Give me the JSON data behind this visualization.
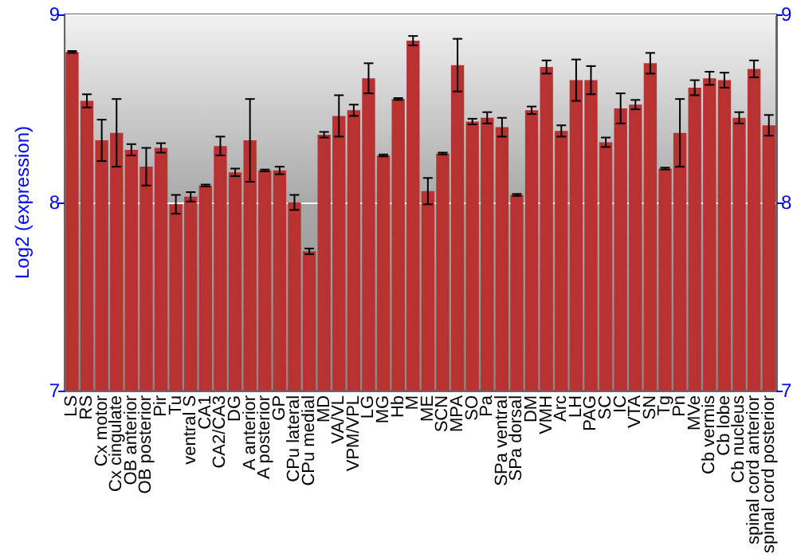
{
  "chart_data": {
    "type": "bar",
    "ylabel": "Log2 (expression)",
    "categories": [
      "LS",
      "RS",
      "Cx motor",
      "Cx cingulate",
      "OB anterior",
      "OB posterior",
      "Pir",
      "Tu",
      "ventral S",
      "CA1",
      "CA2/CA3",
      "DG",
      "A anterior",
      "A posterior",
      "GP",
      "CPu lateral",
      "CPu medial",
      "MD",
      "VA/VL",
      "VPM/VPL",
      "LG",
      "MG",
      "Hb",
      "M",
      "ME",
      "SCN",
      "MPA",
      "SO",
      "Pa",
      "SPa ventral",
      "SPa dorsal",
      "DM",
      "VMH",
      "Arc",
      "LH",
      "PAG",
      "SC",
      "IC",
      "VTA",
      "SN",
      "Tg",
      "Pn",
      "MVe",
      "Cb vermis",
      "Cb lobe",
      "Cb nucleus",
      "spinal cord anterior",
      "spinal cord posterior"
    ],
    "values": [
      8.8,
      8.54,
      8.33,
      8.37,
      8.28,
      8.19,
      8.29,
      7.99,
      8.03,
      8.09,
      8.3,
      8.16,
      8.33,
      8.17,
      8.17,
      8.0,
      7.74,
      8.36,
      8.46,
      8.49,
      8.66,
      8.25,
      8.55,
      8.86,
      8.06,
      8.26,
      8.73,
      8.43,
      8.45,
      8.4,
      8.04,
      8.49,
      8.72,
      8.38,
      8.65,
      8.65,
      8.32,
      8.5,
      8.52,
      8.74,
      8.18,
      8.37,
      8.61,
      8.66,
      8.65,
      8.45,
      8.71,
      8.41
    ],
    "errors": [
      0.005,
      0.035,
      0.11,
      0.18,
      0.03,
      0.1,
      0.025,
      0.05,
      0.025,
      0.005,
      0.05,
      0.02,
      0.22,
      0.005,
      0.02,
      0.04,
      0.015,
      0.015,
      0.11,
      0.03,
      0.08,
      0.005,
      0.005,
      0.025,
      0.07,
      0.005,
      0.14,
      0.015,
      0.03,
      0.05,
      0.005,
      0.02,
      0.035,
      0.03,
      0.11,
      0.075,
      0.025,
      0.08,
      0.025,
      0.055,
      0.005,
      0.18,
      0.04,
      0.035,
      0.04,
      0.03,
      0.045,
      0.055
    ],
    "color": "#b83232",
    "ylim": [
      7,
      9
    ],
    "yticks": [
      7,
      8,
      9
    ],
    "y2lim": [
      7,
      9
    ],
    "y2ticks": [
      7,
      8,
      9
    ],
    "grid": "y"
  }
}
